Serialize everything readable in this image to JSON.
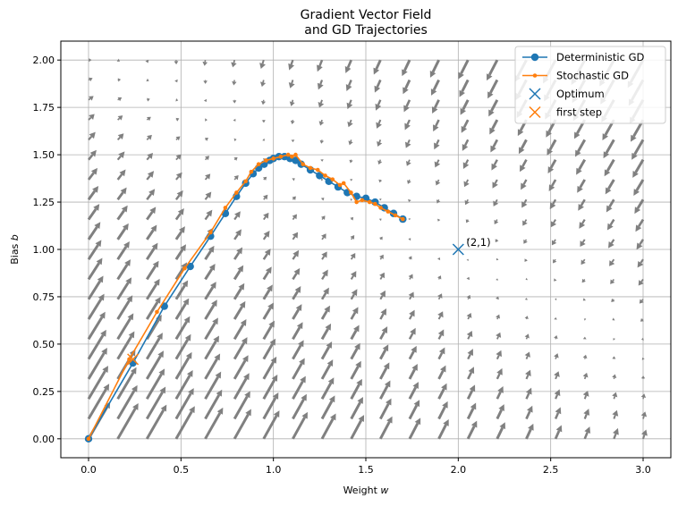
{
  "chart_data": {
    "type": "line",
    "title_lines": [
      "Gradient Vector Field",
      "and GD Trajectories"
    ],
    "xlabel": "Weight w",
    "ylabel": "Bias b",
    "xlim": [
      -0.15,
      3.15
    ],
    "ylim": [
      -0.1,
      2.1
    ],
    "xticks": [
      0.0,
      0.5,
      1.0,
      1.5,
      2.0,
      2.5,
      3.0
    ],
    "xtick_labels": [
      "0.0",
      "0.5",
      "1.0",
      "1.5",
      "2.0",
      "2.5",
      "3.0"
    ],
    "yticks": [
      0.0,
      0.25,
      0.5,
      0.75,
      1.0,
      1.25,
      1.5,
      1.75,
      2.0
    ],
    "ytick_labels": [
      "0.00",
      "0.25",
      "0.50",
      "0.75",
      "1.00",
      "1.25",
      "1.50",
      "1.75",
      "2.00"
    ],
    "grid": true,
    "legend_position": "top-right",
    "colors": {
      "deterministic": "#1f77b4",
      "stochastic": "#ff7f0e",
      "field": "#808080",
      "grid": "#b0b0b0"
    },
    "series": [
      {
        "name": "Deterministic GD",
        "marker": "circle",
        "x": [
          0.0,
          0.24,
          0.41,
          0.55,
          0.66,
          0.74,
          0.8,
          0.85,
          0.89,
          0.92,
          0.95,
          0.98,
          1.0,
          1.03,
          1.06,
          1.09,
          1.12,
          1.15,
          1.2,
          1.25,
          1.3,
          1.35,
          1.4,
          1.45,
          1.5,
          1.55,
          1.6,
          1.65,
          1.7
        ],
        "y": [
          0.0,
          0.4,
          0.7,
          0.91,
          1.07,
          1.19,
          1.28,
          1.35,
          1.4,
          1.43,
          1.45,
          1.47,
          1.48,
          1.49,
          1.49,
          1.48,
          1.47,
          1.45,
          1.42,
          1.39,
          1.36,
          1.33,
          1.3,
          1.28,
          1.27,
          1.25,
          1.22,
          1.19,
          1.16
        ]
      },
      {
        "name": "Stochastic GD",
        "marker": "point",
        "x": [
          0.0,
          0.22,
          0.37,
          0.52,
          0.66,
          0.74,
          0.8,
          0.85,
          0.88,
          0.92,
          0.96,
          1.0,
          1.04,
          1.08,
          1.1,
          1.12,
          1.16,
          1.2,
          1.24,
          1.28,
          1.32,
          1.36,
          1.38,
          1.42,
          1.45,
          1.48,
          1.52,
          1.55,
          1.58,
          1.62,
          1.66,
          1.7
        ],
        "y": [
          0.0,
          0.42,
          0.67,
          0.9,
          1.09,
          1.22,
          1.3,
          1.36,
          1.41,
          1.45,
          1.47,
          1.48,
          1.49,
          1.5,
          1.49,
          1.5,
          1.45,
          1.43,
          1.42,
          1.39,
          1.37,
          1.34,
          1.35,
          1.3,
          1.25,
          1.26,
          1.25,
          1.24,
          1.22,
          1.2,
          1.18,
          1.16
        ]
      }
    ],
    "optimum": {
      "name": "Optimum",
      "x": 2.0,
      "y": 1.0,
      "label": "(2,1)"
    },
    "first_step": {
      "name": "first step",
      "x": 0.24,
      "y": 0.42
    },
    "vector_field": {
      "description": "negative gradient arrows of MSE loss for y = w x + b",
      "w_range": [
        0.0,
        3.0
      ],
      "b_range": [
        0.0,
        2.0
      ],
      "grid_count": 20,
      "optimum_w": 2.0,
      "optimum_b": 1.0
    }
  }
}
